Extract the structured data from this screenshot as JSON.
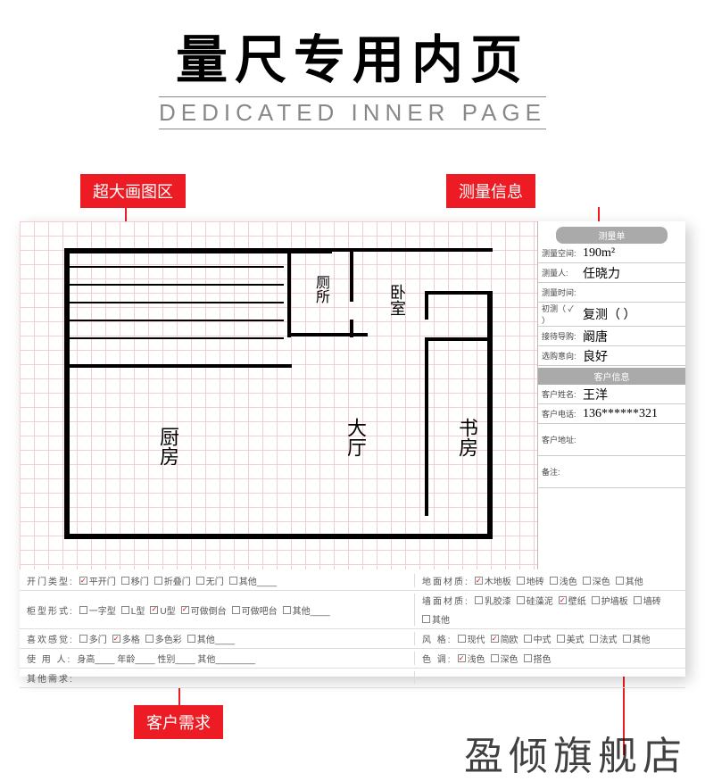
{
  "header": {
    "title_main": "量尺专用内页",
    "title_sub": "DEDICATED INNER PAGE"
  },
  "tags": {
    "draw_area": "超大画图区",
    "measure_info": "测量信息",
    "customer_req": "客户需求"
  },
  "info_panel": {
    "header1": "测量单",
    "rows1": [
      {
        "label": "测量空间:",
        "value": "190m²"
      },
      {
        "label": "测量人:",
        "value": "任晓力"
      },
      {
        "label": "测量时间:",
        "value": ""
      },
      {
        "label": "初测（ ✓ ）",
        "value": "复测（    ）"
      },
      {
        "label": "接待导购:",
        "value": "阚唐"
      },
      {
        "label": "选购意向:",
        "value": "良好"
      }
    ],
    "header2": "客户信息",
    "rows2": [
      {
        "label": "客户姓名:",
        "value": "王洋"
      },
      {
        "label": "客户电话:",
        "value": "136******321"
      },
      {
        "label": "客户地址:",
        "value": ""
      }
    ],
    "remark_label": "备注:"
  },
  "floor_labels": {
    "kitchen": "厨房",
    "living": "大厅",
    "study": "书房",
    "bedroom": "卧室",
    "toilet": "厕所"
  },
  "options": {
    "rows": [
      {
        "left_label": "开门类型:",
        "left_items": [
          {
            "text": "平开门",
            "checked": true
          },
          {
            "text": "移门",
            "checked": false
          },
          {
            "text": "折叠门",
            "checked": false
          },
          {
            "text": "无门",
            "checked": false
          },
          {
            "text": "其他",
            "checked": false,
            "blank": true
          }
        ],
        "right_label": "地面材质:",
        "right_items": [
          {
            "text": "木地板",
            "checked": true
          },
          {
            "text": "地砖",
            "checked": false
          },
          {
            "text": "浅色",
            "checked": false
          },
          {
            "text": "深色",
            "checked": false
          },
          {
            "text": "其他",
            "checked": false
          }
        ]
      },
      {
        "left_label": "柜型形式:",
        "left_items": [
          {
            "text": "一字型",
            "checked": false
          },
          {
            "text": "L型",
            "checked": false
          },
          {
            "text": "U型",
            "checked": true
          },
          {
            "text": "可做倒台",
            "checked": true
          },
          {
            "text": "可做吧台",
            "checked": false
          },
          {
            "text": "其他",
            "checked": false,
            "blank": true
          }
        ],
        "right_label": "墙面材质:",
        "right_items": [
          {
            "text": "乳胶漆",
            "checked": false
          },
          {
            "text": "硅藻泥",
            "checked": false
          },
          {
            "text": "壁纸",
            "checked": true
          },
          {
            "text": "护墙板",
            "checked": false
          },
          {
            "text": "墙砖",
            "checked": false
          },
          {
            "text": "其他",
            "checked": false
          }
        ]
      },
      {
        "left_label": "喜欢感觉:",
        "left_items": [
          {
            "text": "多门",
            "checked": false
          },
          {
            "text": "多格",
            "checked": true
          },
          {
            "text": "多色彩",
            "checked": false
          },
          {
            "text": "其他",
            "checked": false,
            "blank": true
          }
        ],
        "right_label": "风      格:",
        "right_items": [
          {
            "text": "现代",
            "checked": false
          },
          {
            "text": "简欧",
            "checked": true
          },
          {
            "text": "中式",
            "checked": false
          },
          {
            "text": "美式",
            "checked": false
          },
          {
            "text": "法式",
            "checked": false
          },
          {
            "text": "其他",
            "checked": false
          }
        ]
      },
      {
        "left_label": "使 用  人:",
        "left_text": "身高____  年龄____  性别____  其他________",
        "right_label": "色      调:",
        "right_items": [
          {
            "text": "浅色",
            "checked": true
          },
          {
            "text": "深色",
            "checked": false
          },
          {
            "text": "搭色",
            "checked": false
          }
        ]
      },
      {
        "left_label": "其他需求:",
        "left_text": "",
        "right_label": "",
        "right_items": []
      }
    ]
  },
  "watermark": "盈倾旗舰店",
  "colors": {
    "red": "#ed1c24",
    "grid": "#f2d0d0",
    "gray_header": "#aaaaaa"
  }
}
